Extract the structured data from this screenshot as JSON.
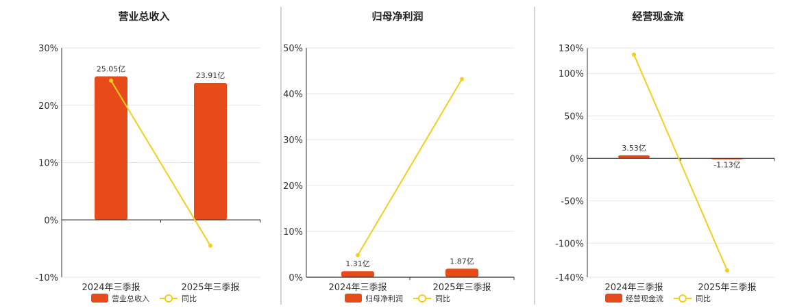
{
  "legend": {
    "yoy_label": "同比"
  },
  "colors": {
    "bar": "#E84B1A",
    "line": "#F2CF1C",
    "grid": "#e6e6e6",
    "axis": "#333333",
    "divider": "#aaaaaa"
  },
  "chart_data": [
    {
      "type": "bar",
      "title": "营业总收入",
      "categories": [
        "2024年三季报",
        "2025年三季报"
      ],
      "series": [
        {
          "name": "营业总收入",
          "type": "bar",
          "values": [
            25.05,
            23.91
          ],
          "labels": [
            "25.05亿",
            "23.91亿"
          ]
        },
        {
          "name": "同比",
          "type": "line",
          "values": [
            24.3,
            -4.5
          ]
        }
      ],
      "ylim": [
        -10,
        30
      ],
      "yticks": [
        -10,
        0,
        10,
        20,
        30
      ],
      "ytick_labels": [
        "-10%",
        "0%",
        "10%",
        "20%",
        "30%"
      ]
    },
    {
      "type": "bar",
      "title": "归母净利润",
      "categories": [
        "2024年三季报",
        "2025年三季报"
      ],
      "series": [
        {
          "name": "归母净利润",
          "type": "bar",
          "values": [
            1.31,
            1.87
          ],
          "labels": [
            "1.31亿",
            "1.87亿"
          ]
        },
        {
          "name": "同比",
          "type": "line",
          "values": [
            4.8,
            43.2
          ]
        }
      ],
      "ylim": [
        0,
        50
      ],
      "yticks": [
        0,
        10,
        20,
        30,
        40,
        50
      ],
      "ytick_labels": [
        "0%",
        "10%",
        "20%",
        "30%",
        "40%",
        "50%"
      ]
    },
    {
      "type": "bar",
      "title": "经营现金流",
      "categories": [
        "2024年三季报",
        "2025年三季报"
      ],
      "series": [
        {
          "name": "经营现金流",
          "type": "bar",
          "values": [
            3.53,
            -1.13
          ],
          "labels": [
            "3.53亿",
            "-1.13亿"
          ]
        },
        {
          "name": "同比",
          "type": "line",
          "values": [
            122,
            -132
          ]
        }
      ],
      "ylim": [
        -140,
        130
      ],
      "yticks": [
        -140,
        -100,
        -50,
        0,
        50,
        100,
        130
      ],
      "ytick_labels": [
        "-140%",
        "-100%",
        "-50%",
        "0%",
        "50%",
        "100%",
        "130%"
      ]
    }
  ]
}
